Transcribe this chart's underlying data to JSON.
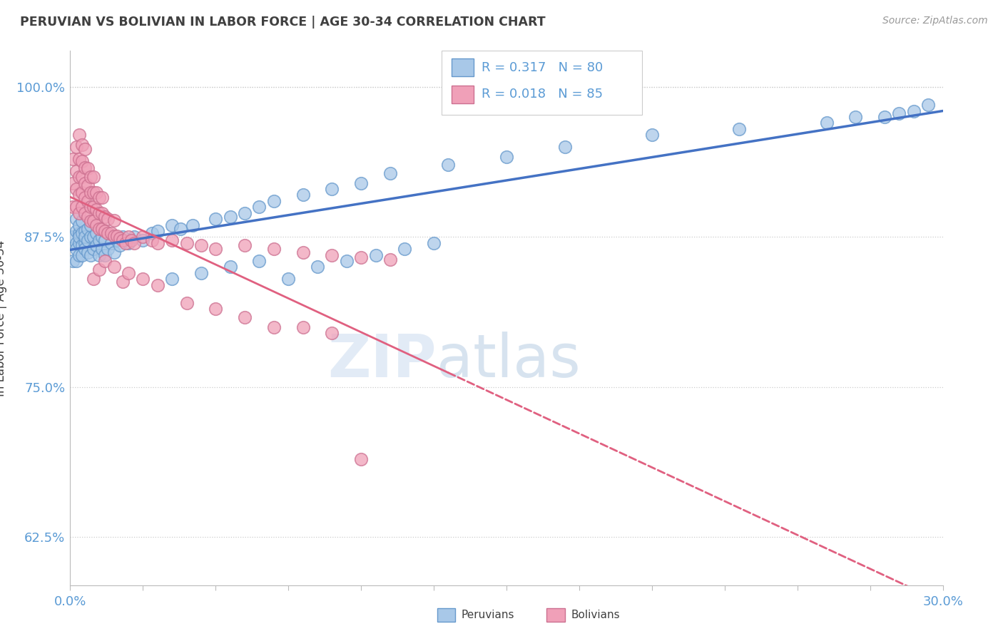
{
  "title": "PERUVIAN VS BOLIVIAN IN LABOR FORCE | AGE 30-34 CORRELATION CHART",
  "source_text": "Source: ZipAtlas.com",
  "ylabel": "In Labor Force | Age 30-34",
  "xlim": [
    0.0,
    0.3
  ],
  "ylim": [
    0.585,
    1.03
  ],
  "ytick_labels": [
    "62.5%",
    "75.0%",
    "87.5%",
    "100.0%"
  ],
  "legend_R_blue": "0.317",
  "legend_N_blue": "80",
  "legend_R_pink": "0.018",
  "legend_N_pink": "85",
  "blue_fill": "#A8C8E8",
  "blue_edge": "#6699CC",
  "pink_fill": "#F0A0B8",
  "pink_edge": "#CC7090",
  "blue_line_color": "#4472C4",
  "pink_line_color": "#E06080",
  "title_color": "#404040",
  "tick_color": "#5B9BD5",
  "blue_x": [
    0.001,
    0.001,
    0.002,
    0.002,
    0.002,
    0.002,
    0.002,
    0.003,
    0.003,
    0.003,
    0.003,
    0.003,
    0.004,
    0.004,
    0.004,
    0.004,
    0.005,
    0.005,
    0.005,
    0.005,
    0.006,
    0.006,
    0.006,
    0.007,
    0.007,
    0.007,
    0.008,
    0.008,
    0.009,
    0.009,
    0.01,
    0.01,
    0.011,
    0.011,
    0.012,
    0.012,
    0.013,
    0.014,
    0.015,
    0.016,
    0.017,
    0.018,
    0.02,
    0.022,
    0.025,
    0.028,
    0.03,
    0.035,
    0.038,
    0.042,
    0.05,
    0.055,
    0.06,
    0.065,
    0.07,
    0.08,
    0.09,
    0.1,
    0.11,
    0.13,
    0.15,
    0.17,
    0.2,
    0.23,
    0.26,
    0.27,
    0.28,
    0.285,
    0.29,
    0.295,
    0.035,
    0.045,
    0.055,
    0.065,
    0.075,
    0.085,
    0.095,
    0.105,
    0.115,
    0.125
  ],
  "blue_y": [
    0.855,
    0.875,
    0.87,
    0.88,
    0.89,
    0.855,
    0.865,
    0.87,
    0.878,
    0.885,
    0.86,
    0.875,
    0.868,
    0.878,
    0.888,
    0.86,
    0.87,
    0.88,
    0.865,
    0.875,
    0.862,
    0.872,
    0.882,
    0.86,
    0.875,
    0.885,
    0.865,
    0.875,
    0.868,
    0.878,
    0.86,
    0.872,
    0.865,
    0.875,
    0.86,
    0.872,
    0.865,
    0.87,
    0.862,
    0.872,
    0.868,
    0.875,
    0.87,
    0.875,
    0.872,
    0.878,
    0.88,
    0.885,
    0.882,
    0.885,
    0.89,
    0.892,
    0.895,
    0.9,
    0.905,
    0.91,
    0.915,
    0.92,
    0.928,
    0.935,
    0.942,
    0.95,
    0.96,
    0.965,
    0.97,
    0.975,
    0.975,
    0.978,
    0.98,
    0.985,
    0.84,
    0.845,
    0.85,
    0.855,
    0.84,
    0.85,
    0.855,
    0.86,
    0.865,
    0.87
  ],
  "pink_x": [
    0.001,
    0.001,
    0.001,
    0.002,
    0.002,
    0.002,
    0.002,
    0.003,
    0.003,
    0.003,
    0.003,
    0.003,
    0.004,
    0.004,
    0.004,
    0.004,
    0.004,
    0.005,
    0.005,
    0.005,
    0.005,
    0.005,
    0.006,
    0.006,
    0.006,
    0.006,
    0.007,
    0.007,
    0.007,
    0.007,
    0.008,
    0.008,
    0.008,
    0.008,
    0.009,
    0.009,
    0.009,
    0.01,
    0.01,
    0.01,
    0.011,
    0.011,
    0.011,
    0.012,
    0.012,
    0.013,
    0.013,
    0.014,
    0.015,
    0.015,
    0.016,
    0.017,
    0.018,
    0.019,
    0.02,
    0.021,
    0.022,
    0.025,
    0.028,
    0.03,
    0.035,
    0.04,
    0.045,
    0.05,
    0.06,
    0.07,
    0.08,
    0.09,
    0.1,
    0.11,
    0.008,
    0.01,
    0.012,
    0.015,
    0.018,
    0.02,
    0.025,
    0.03,
    0.04,
    0.05,
    0.06,
    0.07,
    0.08,
    0.09,
    0.1
  ],
  "pink_y": [
    0.9,
    0.92,
    0.94,
    0.9,
    0.915,
    0.93,
    0.95,
    0.895,
    0.91,
    0.925,
    0.94,
    0.96,
    0.9,
    0.912,
    0.925,
    0.938,
    0.952,
    0.895,
    0.908,
    0.92,
    0.933,
    0.948,
    0.892,
    0.905,
    0.918,
    0.932,
    0.888,
    0.9,
    0.912,
    0.925,
    0.888,
    0.9,
    0.912,
    0.925,
    0.885,
    0.898,
    0.912,
    0.882,
    0.895,
    0.908,
    0.882,
    0.895,
    0.908,
    0.88,
    0.892,
    0.878,
    0.89,
    0.878,
    0.876,
    0.889,
    0.876,
    0.874,
    0.872,
    0.87,
    0.875,
    0.872,
    0.87,
    0.875,
    0.872,
    0.87,
    0.872,
    0.87,
    0.868,
    0.865,
    0.868,
    0.865,
    0.862,
    0.86,
    0.858,
    0.856,
    0.84,
    0.848,
    0.855,
    0.85,
    0.838,
    0.845,
    0.84,
    0.835,
    0.82,
    0.815,
    0.808,
    0.8,
    0.8,
    0.795,
    0.69
  ]
}
